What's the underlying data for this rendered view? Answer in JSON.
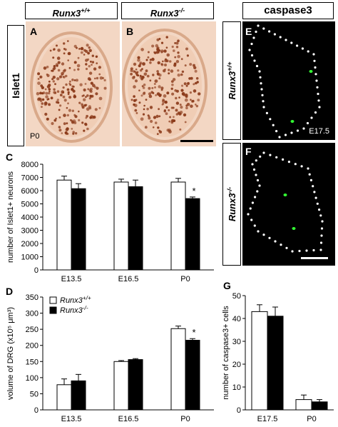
{
  "headers": {
    "wt": "Runx3+/+",
    "ko": "Runx3-/-",
    "caspase": "caspase3"
  },
  "side_labels": {
    "islet": "Islet1",
    "wt": "Runx3+/+",
    "ko": "Runx3-/-"
  },
  "panels": {
    "A": "A",
    "B": "B",
    "C": "C",
    "D": "D",
    "E": "E",
    "F": "F",
    "G": "G",
    "age_p0": "P0",
    "age_e175": "E17.5"
  },
  "colors": {
    "wt_bar": "#ffffff",
    "ko_bar": "#000000",
    "tissue_bg": "#f3d7c4",
    "nucleus": "#8b3a1a",
    "gfp": "#33ff33"
  },
  "chart_data": [
    {
      "id": "C",
      "type": "bar",
      "ylabel": "number of Islet1+ neurons",
      "categories": [
        "E13.5",
        "E16.5",
        "P0"
      ],
      "yticks": [
        0,
        1000,
        2000,
        3000,
        4000,
        5000,
        6000,
        7000,
        8000
      ],
      "ylim": [
        0,
        8000
      ],
      "series": [
        {
          "name": "Runx3+/+",
          "values": [
            6800,
            6650,
            6650
          ],
          "errors": [
            300,
            220,
            280
          ]
        },
        {
          "name": "Runx3-/-",
          "values": [
            6150,
            6300,
            5400
          ],
          "errors": [
            380,
            500,
            120
          ]
        }
      ],
      "significance": [
        "",
        "",
        "*"
      ]
    },
    {
      "id": "D",
      "type": "bar",
      "ylabel": "volume of DRG (x10⁵ μm³)",
      "categories": [
        "E13.5",
        "E16.5",
        "P0"
      ],
      "yticks": [
        0,
        50,
        100,
        150,
        200,
        250,
        300,
        350
      ],
      "ylim": [
        0,
        350
      ],
      "legend": "top-left",
      "series": [
        {
          "name": "Runx3+/+",
          "values": [
            78,
            150,
            252
          ],
          "errors": [
            18,
            3,
            8
          ]
        },
        {
          "name": "Runx3-/-",
          "values": [
            90,
            156,
            216
          ],
          "errors": [
            20,
            3,
            5
          ]
        }
      ],
      "significance": [
        "",
        "",
        "*"
      ]
    },
    {
      "id": "G",
      "type": "bar",
      "ylabel": "number of caspase3+ cells",
      "categories": [
        "E17.5",
        "P0"
      ],
      "yticks": [
        0,
        10,
        20,
        30,
        40,
        50
      ],
      "ylim": [
        0,
        50
      ],
      "series": [
        {
          "name": "Runx3+/+",
          "values": [
            43,
            4.5
          ],
          "errors": [
            3,
            2
          ]
        },
        {
          "name": "Runx3-/-",
          "values": [
            41,
            3.5
          ],
          "errors": [
            4,
            1
          ]
        }
      ],
      "significance": [
        "",
        ""
      ]
    }
  ]
}
